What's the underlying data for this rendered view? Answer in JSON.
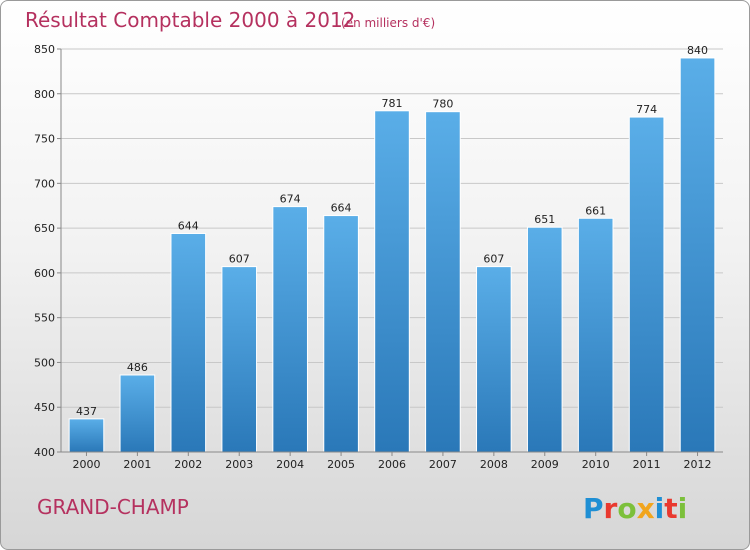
{
  "chart_data": {
    "type": "bar",
    "title": "Résultat Comptable 2000 à 2012",
    "subtitle": "(en milliers d'€)",
    "categories": [
      "2000",
      "2001",
      "2002",
      "2003",
      "2004",
      "2005",
      "2006",
      "2007",
      "2008",
      "2009",
      "2010",
      "2011",
      "2012"
    ],
    "values": [
      437,
      486,
      644,
      607,
      674,
      664,
      781,
      780,
      607,
      651,
      661,
      774,
      840
    ],
    "value_labels": [
      "437",
      "486",
      "644",
      "607",
      "674",
      "664",
      "781",
      "780",
      "607",
      "651",
      "661",
      "774",
      "840"
    ],
    "ylim": [
      400,
      850
    ],
    "yticks": [
      "400",
      "450",
      "500",
      "550",
      "600",
      "650",
      "700",
      "750",
      "800",
      "850"
    ],
    "ytick_values": [
      400,
      450,
      500,
      550,
      600,
      650,
      700,
      750,
      800,
      850
    ],
    "grid": true,
    "bar_color_top": "#5aaee8",
    "bar_color_bottom": "#2a78b8"
  },
  "footer": {
    "commune": "GRAND-CHAMP",
    "logo": {
      "letters": [
        "P",
        "r",
        "o",
        "x",
        "i",
        "t",
        "i"
      ],
      "colors": [
        "#1f8fd4",
        "#e9392f",
        "#7cc03b",
        "#f1a51d",
        "#1f8fd4",
        "#e9392f",
        "#7cc03b"
      ]
    }
  }
}
